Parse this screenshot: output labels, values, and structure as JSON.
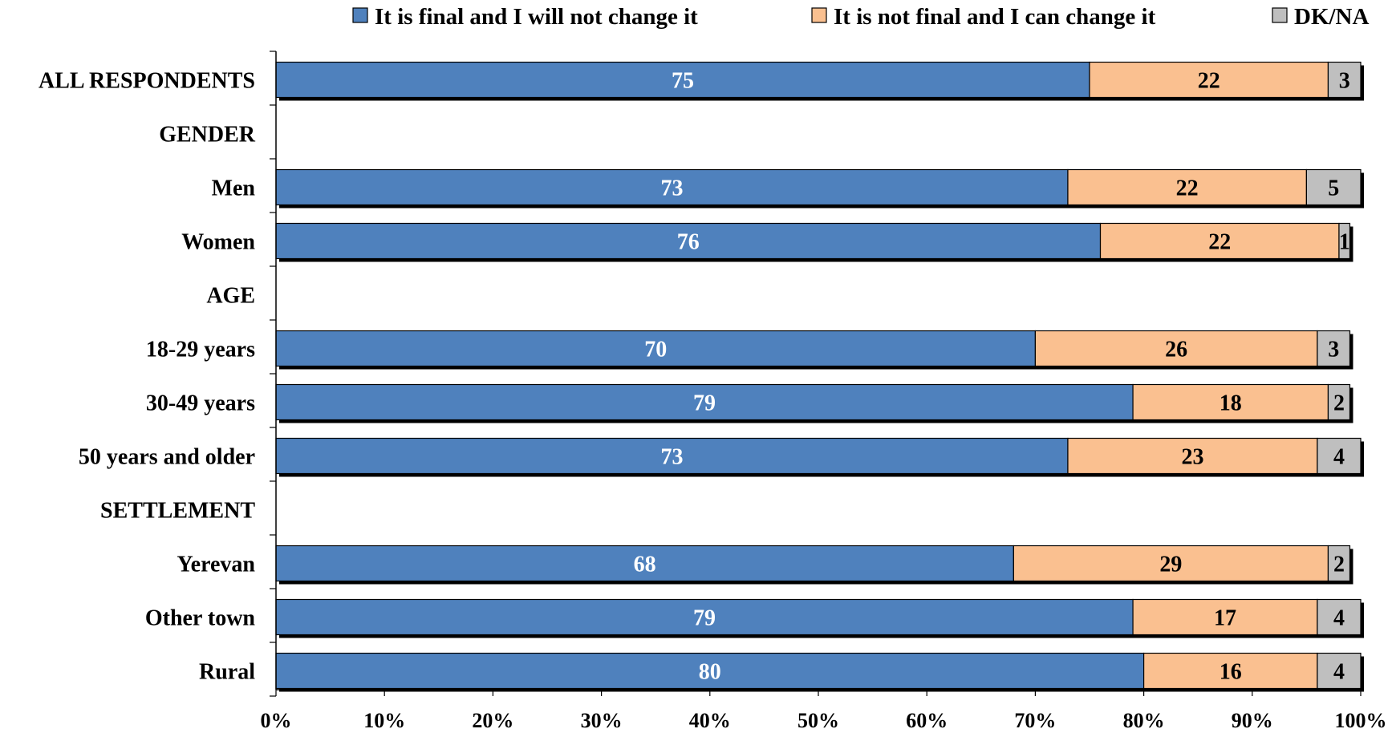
{
  "chart_data": {
    "type": "bar",
    "orientation": "horizontal",
    "stacked": true,
    "categories": [
      "ALL RESPONDENTS",
      "GENDER",
      "Men",
      "Women",
      "AGE",
      "18-29 years",
      "30-49 years",
      "50 years and older",
      "SETTLEMENT",
      "Yerevan",
      "Other town",
      "Rural"
    ],
    "series": [
      {
        "name": "It is final and I will not change it",
        "color": "#4f81bd",
        "label_color": "#ffffff",
        "values": [
          75,
          null,
          73,
          76,
          null,
          70,
          79,
          73,
          null,
          68,
          79,
          80
        ]
      },
      {
        "name": "It is not final and I can change it",
        "color": "#fac090",
        "label_color": "#000000",
        "values": [
          22,
          null,
          22,
          22,
          null,
          26,
          18,
          23,
          null,
          29,
          17,
          16
        ]
      },
      {
        "name": "DK/NA",
        "color": "#bfbfbf",
        "label_color": "#000000",
        "values": [
          3,
          null,
          5,
          1,
          null,
          3,
          2,
          4,
          null,
          2,
          4,
          4
        ]
      }
    ],
    "xlim": [
      0,
      100
    ],
    "x_ticks": [
      "0%",
      "10%",
      "20%",
      "30%",
      "40%",
      "50%",
      "60%",
      "70%",
      "80%",
      "90%",
      "100%"
    ],
    "legend_position": "top",
    "grid": false
  }
}
